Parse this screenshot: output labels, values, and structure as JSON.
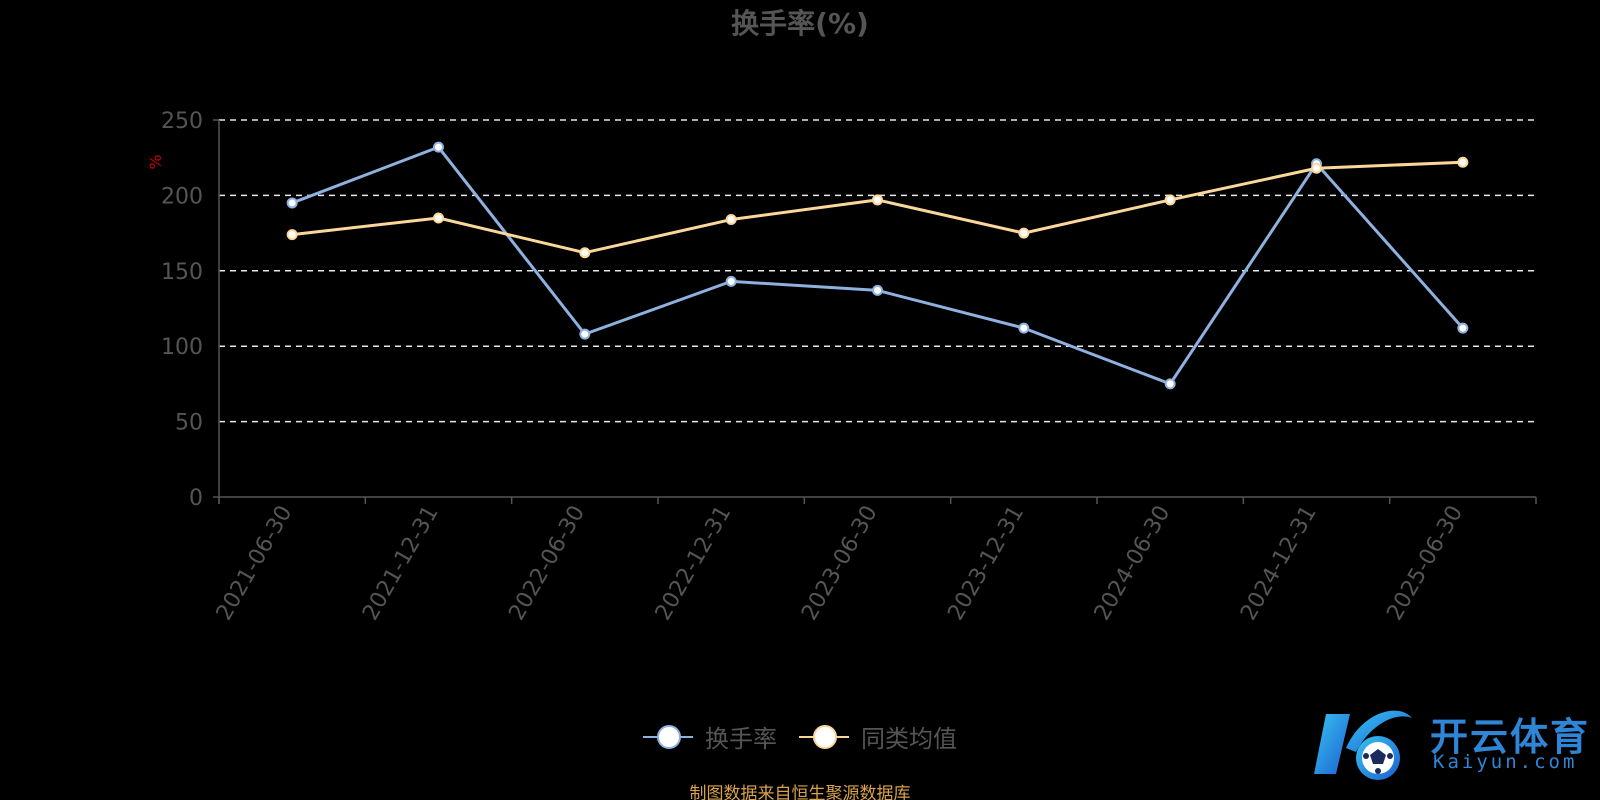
{
  "chart_data": {
    "type": "line",
    "title": "换手率(%)",
    "ylabel": "%",
    "categories": [
      "2021-06-30",
      "2021-12-31",
      "2022-06-30",
      "2022-12-31",
      "2023-06-30",
      "2023-12-31",
      "2024-06-30",
      "2024-12-31",
      "2025-06-30"
    ],
    "series": [
      {
        "name": "换手率",
        "color": "#8eb1e0",
        "values": [
          195,
          232,
          108,
          143,
          137,
          112,
          75,
          221,
          112
        ]
      },
      {
        "name": "同类均值",
        "color": "#fcd79a",
        "values": [
          174,
          185,
          162,
          184,
          197,
          175,
          197,
          218,
          222
        ]
      }
    ],
    "ylim": [
      0,
      250
    ],
    "yticks": [
      0,
      50,
      100,
      150,
      200,
      250
    ],
    "grid": true,
    "legend_position": "bottom"
  },
  "source_note": "制图数据来自恒生聚源数据库",
  "logo": {
    "text_cn": "开云体育",
    "text_en": "Kaiyun.com",
    "color": "#2f86d6"
  }
}
